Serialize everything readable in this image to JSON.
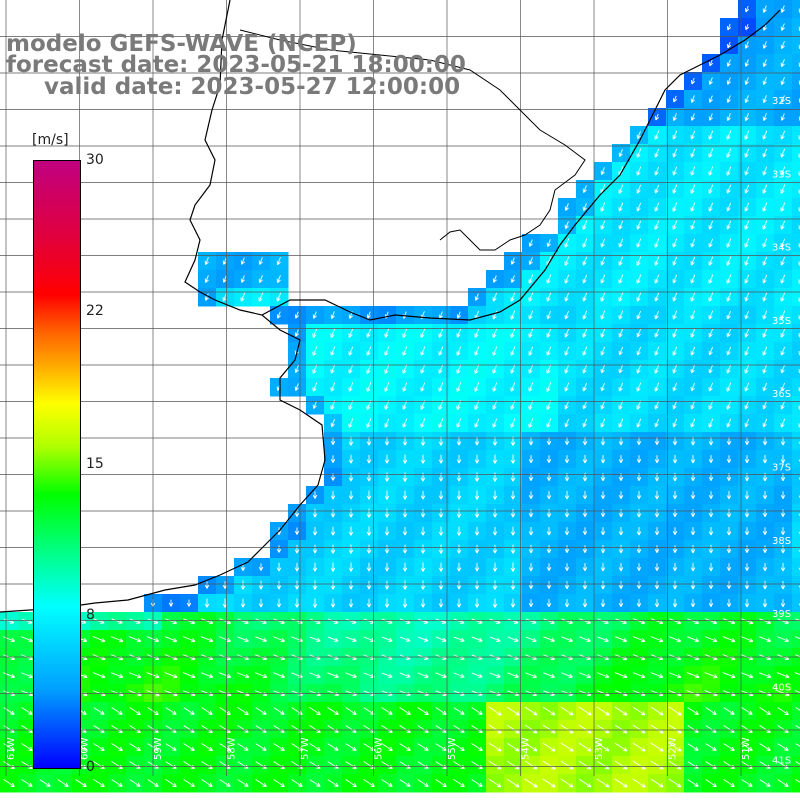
{
  "header": {
    "model": "modelo GEFS-WAVE (NCEP)",
    "forecast": "forecast date: 2023-05-21 18:00:00",
    "valid": "valid date: 2023-05-27 12:00:00"
  },
  "colorbar": {
    "unit": "[m/s]",
    "ticks": [
      "30",
      "22",
      "15",
      "8",
      "0"
    ]
  },
  "lat_labels": [
    "32S",
    "33S",
    "34S",
    "35S",
    "36S",
    "37S",
    "38S",
    "39S",
    "40S",
    "41S"
  ],
  "lon_labels": [
    "61W",
    "60W",
    "59W",
    "58W",
    "57W",
    "56W",
    "55W",
    "54W",
    "53W",
    "52W",
    "51W"
  ],
  "colors": {
    "land": "#ffffff",
    "grid": "#555555",
    "coast": "#000000",
    "arrow": "#ffffff",
    "header_text": "#7a7a7a"
  }
}
